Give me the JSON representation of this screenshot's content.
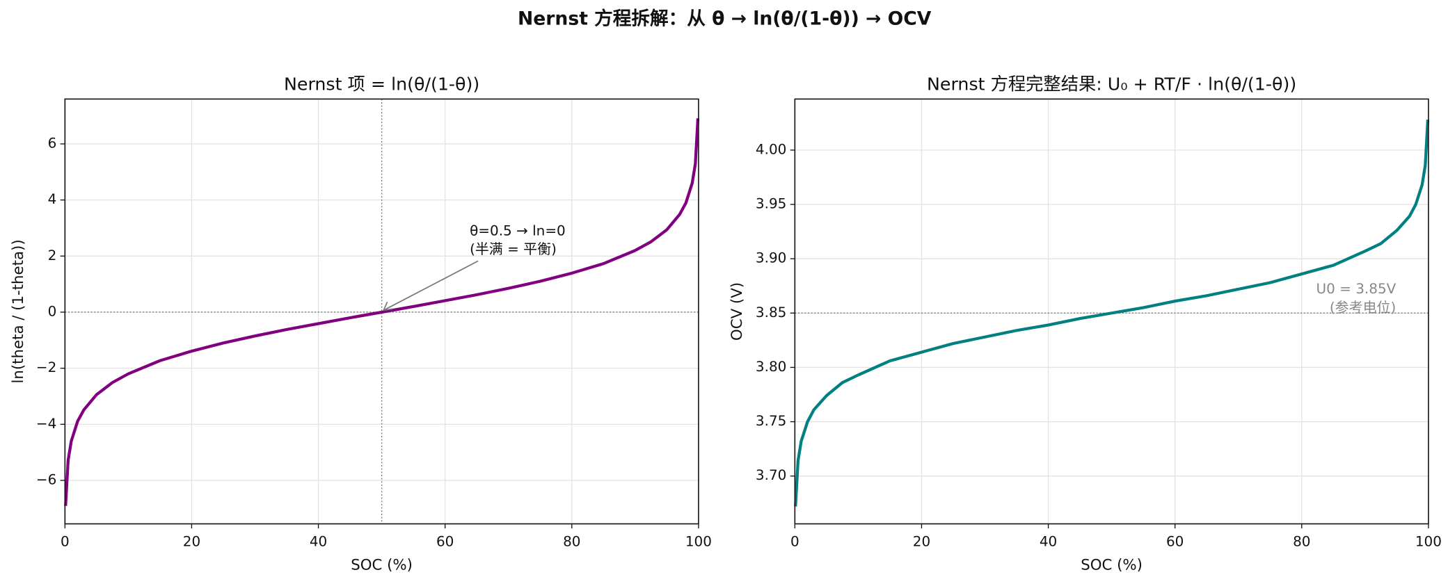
{
  "title": "Nernst 方程拆解：从 θ → ln(θ/(1-θ)) → OCV",
  "chart_data": [
    {
      "type": "line",
      "title": "Nernst 项 = ln(θ/(1-θ))",
      "x_label": "SOC (%)",
      "y_label": "ln(theta / (1-theta))",
      "color": "#800080",
      "grid": true,
      "x": [
        0.1,
        0.5,
        1,
        2,
        3,
        5,
        7.5,
        10,
        15,
        20,
        25,
        30,
        35,
        40,
        45,
        50,
        55,
        60,
        65,
        70,
        75,
        80,
        85,
        90,
        92.5,
        95,
        97,
        98,
        99,
        99.5,
        99.9
      ],
      "values": [
        -6.91,
        -5.29,
        -4.6,
        -3.89,
        -3.48,
        -2.94,
        -2.51,
        -2.2,
        -1.73,
        -1.39,
        -1.1,
        -0.85,
        -0.62,
        -0.41,
        -0.2,
        0,
        0.2,
        0.41,
        0.62,
        0.85,
        1.1,
        1.39,
        1.73,
        2.2,
        2.51,
        2.94,
        3.48,
        3.89,
        4.6,
        5.29,
        6.91
      ],
      "xlim": [
        0,
        100
      ],
      "xticks": [
        0,
        20,
        40,
        60,
        80,
        100
      ],
      "ylim": [
        -7.55,
        7.6
      ],
      "yticks": [
        {
          "value": -6,
          "label": "−6"
        },
        {
          "value": -4,
          "label": "−4"
        },
        {
          "value": -2,
          "label": "−2"
        },
        0,
        2,
        4,
        6
      ],
      "hlines": [
        0
      ],
      "vlines": [
        50
      ],
      "annotation": {
        "lines": [
          "θ=0.5 → ln=0",
          "(半满 = 平衡)"
        ],
        "xy": [
          50,
          0
        ]
      }
    },
    {
      "type": "line",
      "title": "Nernst 方程完整结果:  U₀ + RT/F · ln(θ/(1-θ))",
      "x_label": "SOC (%)",
      "y_label": "OCV (V)",
      "color": "#008080",
      "grid": true,
      "x": [
        0.1,
        0.5,
        1,
        2,
        3,
        5,
        7.5,
        10,
        15,
        20,
        25,
        30,
        35,
        40,
        45,
        50,
        55,
        60,
        65,
        70,
        75,
        80,
        85,
        90,
        92.5,
        95,
        97,
        98,
        99,
        99.5,
        99.9
      ],
      "values": [
        3.672,
        3.714,
        3.732,
        3.75,
        3.761,
        3.774,
        3.786,
        3.793,
        3.806,
        3.814,
        3.822,
        3.828,
        3.834,
        3.839,
        3.845,
        3.85,
        3.855,
        3.861,
        3.866,
        3.872,
        3.878,
        3.886,
        3.894,
        3.907,
        3.914,
        3.926,
        3.939,
        3.95,
        3.968,
        3.986,
        4.028
      ],
      "xlim": [
        0,
        100
      ],
      "xticks": [
        0,
        20,
        40,
        60,
        80,
        100
      ],
      "ylim": [
        3.656,
        4.047
      ],
      "yticks": [
        {
          "value": 3.7,
          "label": "3.70"
        },
        3.75,
        {
          "value": 3.8,
          "label": "3.80"
        },
        3.85,
        {
          "value": 3.9,
          "label": "3.90"
        },
        3.95,
        {
          "value": 4,
          "label": "4.00"
        }
      ],
      "hlines": [
        3.85
      ],
      "annotation": {
        "lines": [
          "U0 = 3.85V",
          "(参考电位)"
        ]
      }
    }
  ]
}
